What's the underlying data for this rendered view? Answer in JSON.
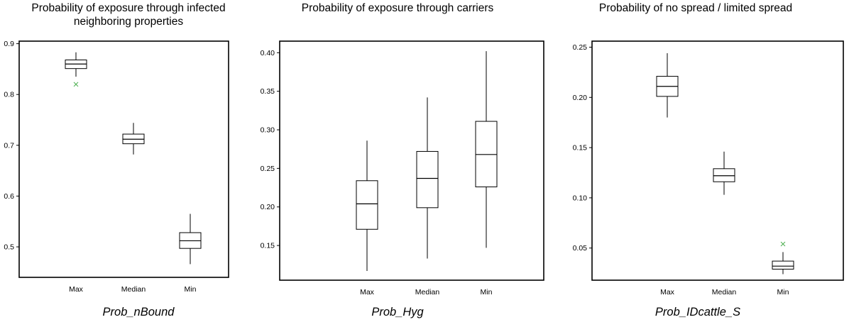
{
  "chart_data": [
    {
      "type": "box",
      "title": "Probability of exposure through infected neighboring properties",
      "subtitle": "Prob_nBound",
      "categories": [
        "Max",
        "Median",
        "Min"
      ],
      "ylim": [
        0.44,
        0.905
      ],
      "yticks": [
        0.5,
        0.6,
        0.7,
        0.8,
        0.9
      ],
      "tick_labels": [
        "0.5",
        "0.6",
        "0.7",
        "0.8",
        "0.9"
      ],
      "boxes": [
        {
          "min": 0.835,
          "q1": 0.851,
          "median": 0.86,
          "q3": 0.868,
          "max": 0.883,
          "outliers": [
            0.82
          ]
        },
        {
          "min": 0.682,
          "q1": 0.703,
          "median": 0.712,
          "q3": 0.722,
          "max": 0.744,
          "outliers": []
        },
        {
          "min": 0.466,
          "q1": 0.497,
          "median": 0.512,
          "q3": 0.528,
          "max": 0.565,
          "outliers": []
        }
      ],
      "outlier_color": "#4caf50"
    },
    {
      "type": "box",
      "title": "Probability of exposure through carriers",
      "subtitle": "Prob_Hyg",
      "categories": [
        "Max",
        "Median",
        "Min"
      ],
      "ylim": [
        0.105,
        0.415
      ],
      "yticks": [
        0.15,
        0.2,
        0.25,
        0.3,
        0.35,
        0.4
      ],
      "tick_labels": [
        "0.15",
        "0.20",
        "0.25",
        "0.30",
        "0.35",
        "0.40"
      ],
      "boxes": [
        {
          "min": 0.117,
          "q1": 0.171,
          "median": 0.204,
          "q3": 0.234,
          "max": 0.286,
          "outliers": []
        },
        {
          "min": 0.133,
          "q1": 0.199,
          "median": 0.237,
          "q3": 0.272,
          "max": 0.342,
          "outliers": []
        },
        {
          "min": 0.147,
          "q1": 0.226,
          "median": 0.268,
          "q3": 0.311,
          "max": 0.402,
          "outliers": []
        }
      ],
      "outlier_color": "#4caf50"
    },
    {
      "type": "box",
      "title": "Probability of no spread / limited spread",
      "subtitle": "Prob_IDcattle_S",
      "categories": [
        "Max",
        "Median",
        "Min"
      ],
      "ylim": [
        0.018,
        0.256
      ],
      "yticks": [
        0.05,
        0.1,
        0.15,
        0.2,
        0.25
      ],
      "tick_labels": [
        "0.05",
        "0.10",
        "0.15",
        "0.20",
        "0.25"
      ],
      "boxes": [
        {
          "min": 0.18,
          "q1": 0.201,
          "median": 0.211,
          "q3": 0.221,
          "max": 0.244,
          "outliers": []
        },
        {
          "min": 0.103,
          "q1": 0.116,
          "median": 0.122,
          "q3": 0.129,
          "max": 0.146,
          "outliers": []
        },
        {
          "min": 0.024,
          "q1": 0.029,
          "median": 0.032,
          "q3": 0.037,
          "max": 0.046,
          "outliers": [
            0.054
          ]
        }
      ],
      "outlier_color": "#4caf50"
    }
  ]
}
